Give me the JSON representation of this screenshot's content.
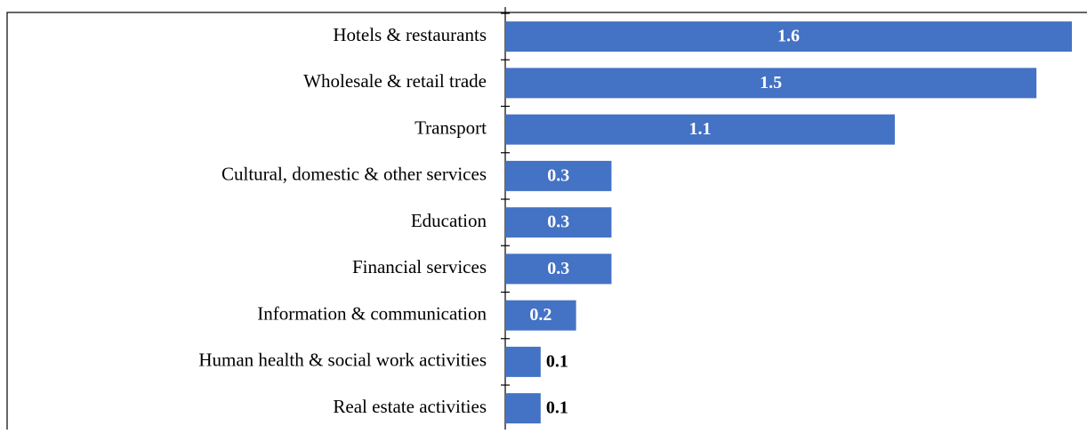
{
  "chart_data": {
    "type": "bar",
    "orientation": "horizontal",
    "categories": [
      "Hotels & restaurants",
      "Wholesale & retail trade",
      "Transport",
      "Cultural, domestic & other services",
      "Education",
      "Financial services",
      "Information & communication",
      "Human health & social work activities",
      "Real estate activities"
    ],
    "values": [
      1.6,
      1.5,
      1.1,
      0.3,
      0.3,
      0.3,
      0.2,
      0.1,
      0.1
    ],
    "color": "#4472c4"
  }
}
